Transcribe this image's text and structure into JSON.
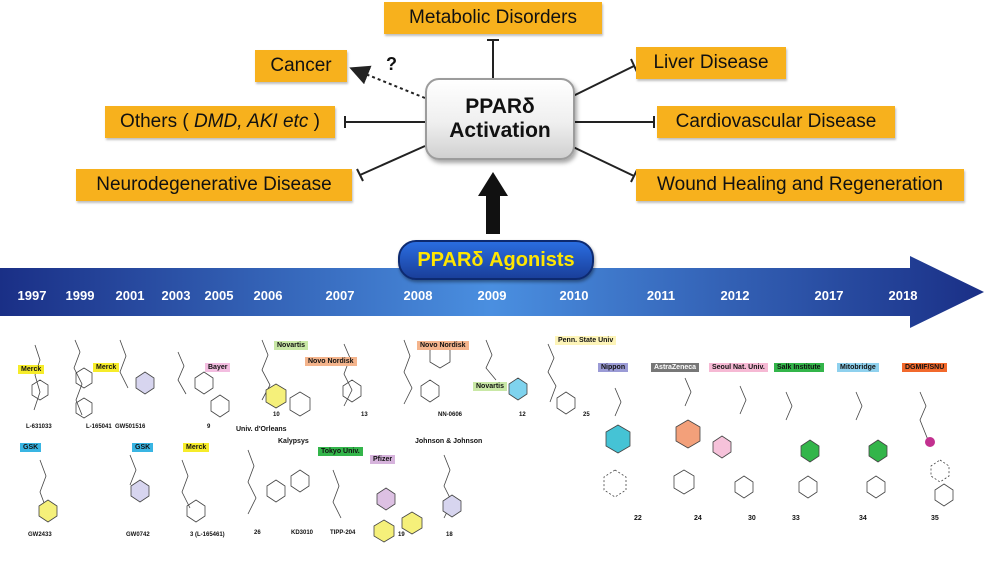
{
  "center": {
    "line1": "PPARδ",
    "line2": "Activation"
  },
  "question_mark": "?",
  "diseases": {
    "metabolic": "Metabolic Disorders",
    "cancer": "Cancer",
    "liver": "Liver Disease",
    "others_prefix": "Others ( ",
    "others_italic": "DMD, AKI etc",
    "others_suffix": " )",
    "cardio": "Cardiovascular Disease",
    "neuro": "Neurodegenerative Disease",
    "wound": "Wound Healing and Regeneration"
  },
  "agonists_label": "PPARδ  Agonists",
  "years": [
    "1997",
    "1999",
    "2001",
    "2003",
    "2005",
    "2006",
    "2007",
    "2008",
    "2009",
    "2010",
    "2011",
    "2012",
    "2017",
    "2018"
  ],
  "companies": {
    "merck1": "Merck",
    "merck2": "Merck",
    "merck3": "Merck",
    "bayer": "Bayer",
    "novartis1": "Novartis",
    "novo1": "Novo Nordisk",
    "novo2": "Novo Nordisk",
    "novartis2": "Novartis",
    "penn": "Penn. State Univ",
    "gsk1": "GSK",
    "gsk2": "GSK",
    "orleans": "Univ. d'Orleans",
    "kalypsys": "Kalypsys",
    "tokyo": "Tokyo Univ.",
    "pfizer": "Pfizer",
    "jnj": "Johnson & Johnson",
    "nippon": "Nippon",
    "astrazeneca": "AstraZeneca",
    "seoul": "Seoul Nat. Univ.",
    "salk": "Salk Institute",
    "mitobridge": "Mitobridge",
    "dgmif": "DGMIF/SNU"
  },
  "compounds": {
    "l631033": "L-631033",
    "l165041": "L-165041",
    "gw501516": "GW501516",
    "c9": "9",
    "c10": "10",
    "c13": "13",
    "nn0606": "NN-0606",
    "c12": "12",
    "c25": "25",
    "gw2433": "GW2433",
    "gw0742": "GW0742",
    "c3": "3 (L-165461)",
    "c26": "26",
    "kd3010": "KD3010",
    "tipp204": "TIPP-204",
    "c19": "19",
    "c18": "18",
    "c22": "22",
    "c24": "24",
    "c30": "30",
    "c33": "33",
    "c34": "34",
    "c35": "35"
  },
  "colors": {
    "disease_box": "#f7b11d",
    "timeline_dark": "#1a2f86",
    "timeline_light": "#4a8fe0",
    "agonist_text": "#ffe600",
    "merck": "#f6ec2a",
    "bayer": "#f3bde0",
    "novartis": "#c9e8a6",
    "novo": "#f4b48c",
    "gsk": "#39b5e3",
    "tokyo": "#33b54a",
    "pfizer": "#d6b3dc",
    "jnj": "#ffffff",
    "nippon": "#9b9bd6",
    "astrazeneca": "#777777",
    "seoul": "#f6b9d4",
    "salk": "#33b54a",
    "mitobridge": "#8fd1ee",
    "dgmif": "#f2692c",
    "penn": "#fdf4b8"
  }
}
